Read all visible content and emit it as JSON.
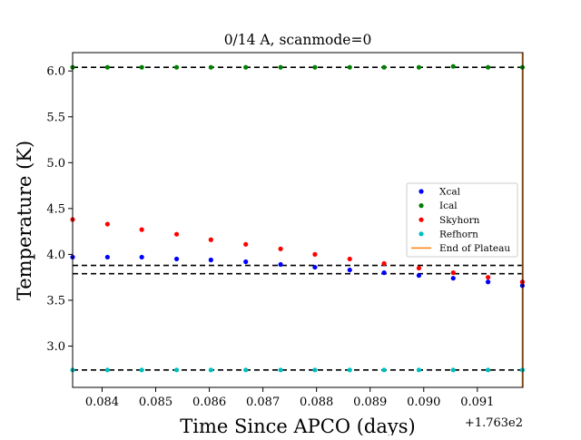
{
  "chart_data": {
    "type": "scatter",
    "title": "0/14 A, scanmode=0",
    "xlabel": "Time Since APCO (days)",
    "ylabel": "Temperature (K)",
    "x_offset_label": "+1.763e2",
    "xlim": [
      0.08345,
      0.09185
    ],
    "ylim": [
      2.55,
      6.2
    ],
    "xticks": [
      0.084,
      0.085,
      0.086,
      0.087,
      0.088,
      0.089,
      0.09,
      0.091
    ],
    "xtick_labels": [
      "0.084",
      "0.085",
      "0.086",
      "0.087",
      "0.088",
      "0.089",
      "0.090",
      "0.091"
    ],
    "yticks": [
      3.0,
      3.5,
      4.0,
      4.5,
      5.0,
      5.5,
      6.0
    ],
    "ytick_labels": [
      "3.0",
      "3.5",
      "4.0",
      "4.5",
      "5.0",
      "5.5",
      "6.0"
    ],
    "grid": false,
    "legend_position": "center-right",
    "x": [
      0.08345,
      0.0841,
      0.08474,
      0.08539,
      0.08603,
      0.08668,
      0.08733,
      0.08797,
      0.08862,
      0.08926,
      0.08991,
      0.09055,
      0.0912,
      0.09184
    ],
    "series": [
      {
        "name": "Xcal",
        "color": "#0000ff",
        "values": [
          3.97,
          3.97,
          3.97,
          3.95,
          3.94,
          3.92,
          3.89,
          3.86,
          3.83,
          3.8,
          3.77,
          3.74,
          3.7,
          3.66
        ]
      },
      {
        "name": "Ical",
        "color": "#008000",
        "values": [
          6.04,
          6.04,
          6.04,
          6.04,
          6.04,
          6.04,
          6.04,
          6.04,
          6.04,
          6.04,
          6.04,
          6.05,
          6.04,
          6.04
        ]
      },
      {
        "name": "Skyhorn",
        "color": "#ff0000",
        "values": [
          4.38,
          4.33,
          4.27,
          4.22,
          4.16,
          4.11,
          4.06,
          4.0,
          3.95,
          3.9,
          3.85,
          3.8,
          3.75,
          3.7
        ]
      },
      {
        "name": "Refhorn",
        "color": "#00bfbf",
        "values": [
          2.74,
          2.74,
          2.74,
          2.74,
          2.74,
          2.74,
          2.74,
          2.74,
          2.74,
          2.74,
          2.74,
          2.74,
          2.74,
          2.74
        ]
      }
    ],
    "hlines": [
      6.04,
      3.88,
      3.79,
      2.74
    ],
    "hline_color": "#000000",
    "vline": {
      "name": "End of Plateau",
      "x": 0.09184,
      "color": "#ff7f0e"
    }
  }
}
